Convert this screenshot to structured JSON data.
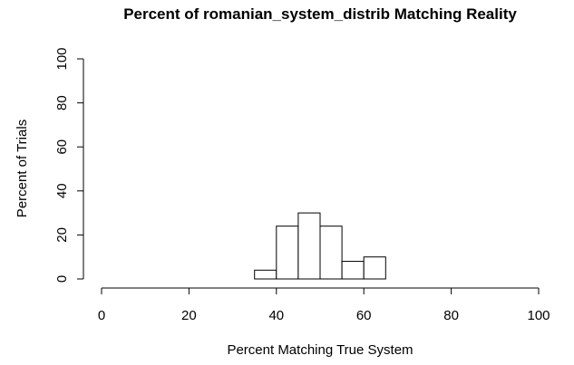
{
  "chart_data": {
    "type": "bar",
    "title": "Percent of romanian_system_distrib Matching Reality",
    "xlabel": "Percent Matching True System",
    "ylabel": "Percent of Trials",
    "xlim": [
      0,
      100
    ],
    "ylim": [
      0,
      100
    ],
    "x_ticks": [
      0,
      20,
      40,
      60,
      80,
      100
    ],
    "y_ticks": [
      0,
      20,
      40,
      60,
      80,
      100
    ],
    "x_tick_labels": [
      "0",
      "20",
      "40",
      "60",
      "80",
      "100"
    ],
    "y_tick_labels": [
      "0",
      "20",
      "40",
      "60",
      "80",
      "100"
    ],
    "grid": false,
    "bins": [
      {
        "start": 35,
        "end": 40,
        "value": 4
      },
      {
        "start": 40,
        "end": 45,
        "value": 24
      },
      {
        "start": 45,
        "end": 50,
        "value": 30
      },
      {
        "start": 50,
        "end": 55,
        "value": 24
      },
      {
        "start": 55,
        "end": 60,
        "value": 8
      },
      {
        "start": 60,
        "end": 65,
        "value": 10
      }
    ]
  }
}
